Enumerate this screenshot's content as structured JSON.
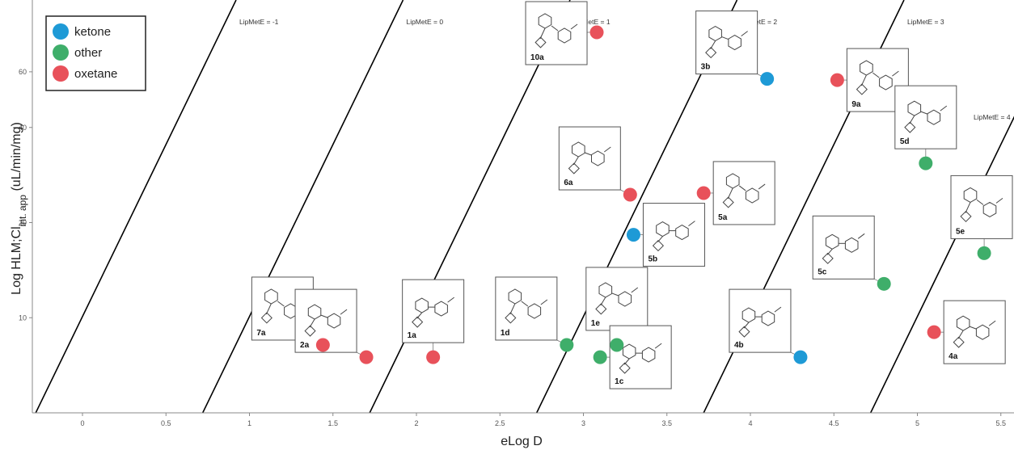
{
  "chart_data": {
    "type": "scatter",
    "title": "",
    "xlabel": "eLog D",
    "ylabel_main": "Log HLM;Cl",
    "ylabel_sub": "int. app",
    "ylabel_unit": " (uL/min/mg)",
    "xlim": [
      -0.3,
      5.55
    ],
    "ylim_log": [
      5.0,
      90.0
    ],
    "x_ticks": [
      {
        "v": 0,
        "label": "0"
      },
      {
        "v": 0.5,
        "label": "0.5"
      },
      {
        "v": 1,
        "label": "1"
      },
      {
        "v": 1.5,
        "label": "1.5"
      },
      {
        "v": 2,
        "label": "2"
      },
      {
        "v": 2.5,
        "label": "2.5"
      },
      {
        "v": 3,
        "label": "3"
      },
      {
        "v": 3.5,
        "label": "3.5"
      },
      {
        "v": 4,
        "label": "4"
      },
      {
        "v": 4.5,
        "label": "4.5"
      },
      {
        "v": 5,
        "label": "5"
      },
      {
        "v": 5.5,
        "label": "5.5"
      }
    ],
    "y_ticks": [
      {
        "v": 10,
        "label": "10"
      },
      {
        "v": 20,
        "label": "20"
      },
      {
        "v": 40,
        "label": "40"
      },
      {
        "v": 60,
        "label": "60"
      }
    ],
    "legend": {
      "position": "top-left",
      "items": [
        {
          "name": "ketone",
          "color": "#1e9ad6"
        },
        {
          "name": "other",
          "color": "#3fae6a"
        },
        {
          "name": "oxetane",
          "color": "#e8515a"
        }
      ]
    },
    "lipmete_lines": [
      {
        "k": -1,
        "label": "LipMetE = -1"
      },
      {
        "k": 0,
        "label": "LipMetE = 0"
      },
      {
        "k": 1,
        "label": "LipMetE = 1"
      },
      {
        "k": 2,
        "label": "LipMetE = 2"
      },
      {
        "k": 3,
        "label": "LipMetE = 3"
      },
      {
        "k": 4,
        "label": "LipMetE = 4"
      }
    ],
    "points": [
      {
        "id": "7a",
        "x": 1.44,
        "y": 8.2,
        "class": "oxetane",
        "label_pos": "left"
      },
      {
        "id": "2a",
        "x": 1.7,
        "y": 7.5,
        "class": "oxetane",
        "label_pos": "left"
      },
      {
        "id": "1a",
        "x": 2.1,
        "y": 7.5,
        "class": "oxetane",
        "label_pos": "above"
      },
      {
        "id": "1d",
        "x": 2.9,
        "y": 8.2,
        "class": "other",
        "label_pos": "left"
      },
      {
        "id": "1e",
        "x": 3.2,
        "y": 8.2,
        "class": "other",
        "label_pos": "above"
      },
      {
        "id": "1c",
        "x": 3.1,
        "y": 7.5,
        "class": "other",
        "label_pos": "right"
      },
      {
        "id": "10a",
        "x": 3.08,
        "y": 80,
        "class": "oxetane",
        "label_pos": "left"
      },
      {
        "id": "6a",
        "x": 3.28,
        "y": 24.5,
        "class": "oxetane",
        "label_pos": "left"
      },
      {
        "id": "5b",
        "x": 3.3,
        "y": 18.3,
        "class": "ketone",
        "label_pos": "right"
      },
      {
        "id": "5a",
        "x": 3.72,
        "y": 24.8,
        "class": "oxetane",
        "label_pos": "right"
      },
      {
        "id": "3b",
        "x": 4.1,
        "y": 57,
        "class": "ketone",
        "label_pos": "left"
      },
      {
        "id": "4b",
        "x": 4.3,
        "y": 7.5,
        "class": "ketone",
        "label_pos": "left"
      },
      {
        "id": "9a",
        "x": 4.52,
        "y": 56.5,
        "class": "oxetane",
        "label_pos": "right"
      },
      {
        "id": "5d",
        "x": 5.05,
        "y": 30.8,
        "class": "other",
        "label_pos": "above"
      },
      {
        "id": "5c",
        "x": 4.8,
        "y": 12.8,
        "class": "other",
        "label_pos": "left"
      },
      {
        "id": "5e",
        "x": 5.4,
        "y": 16.0,
        "class": "other",
        "label_pos": "above"
      },
      {
        "id": "4a",
        "x": 5.1,
        "y": 9.0,
        "class": "oxetane",
        "label_pos": "right"
      }
    ]
  }
}
